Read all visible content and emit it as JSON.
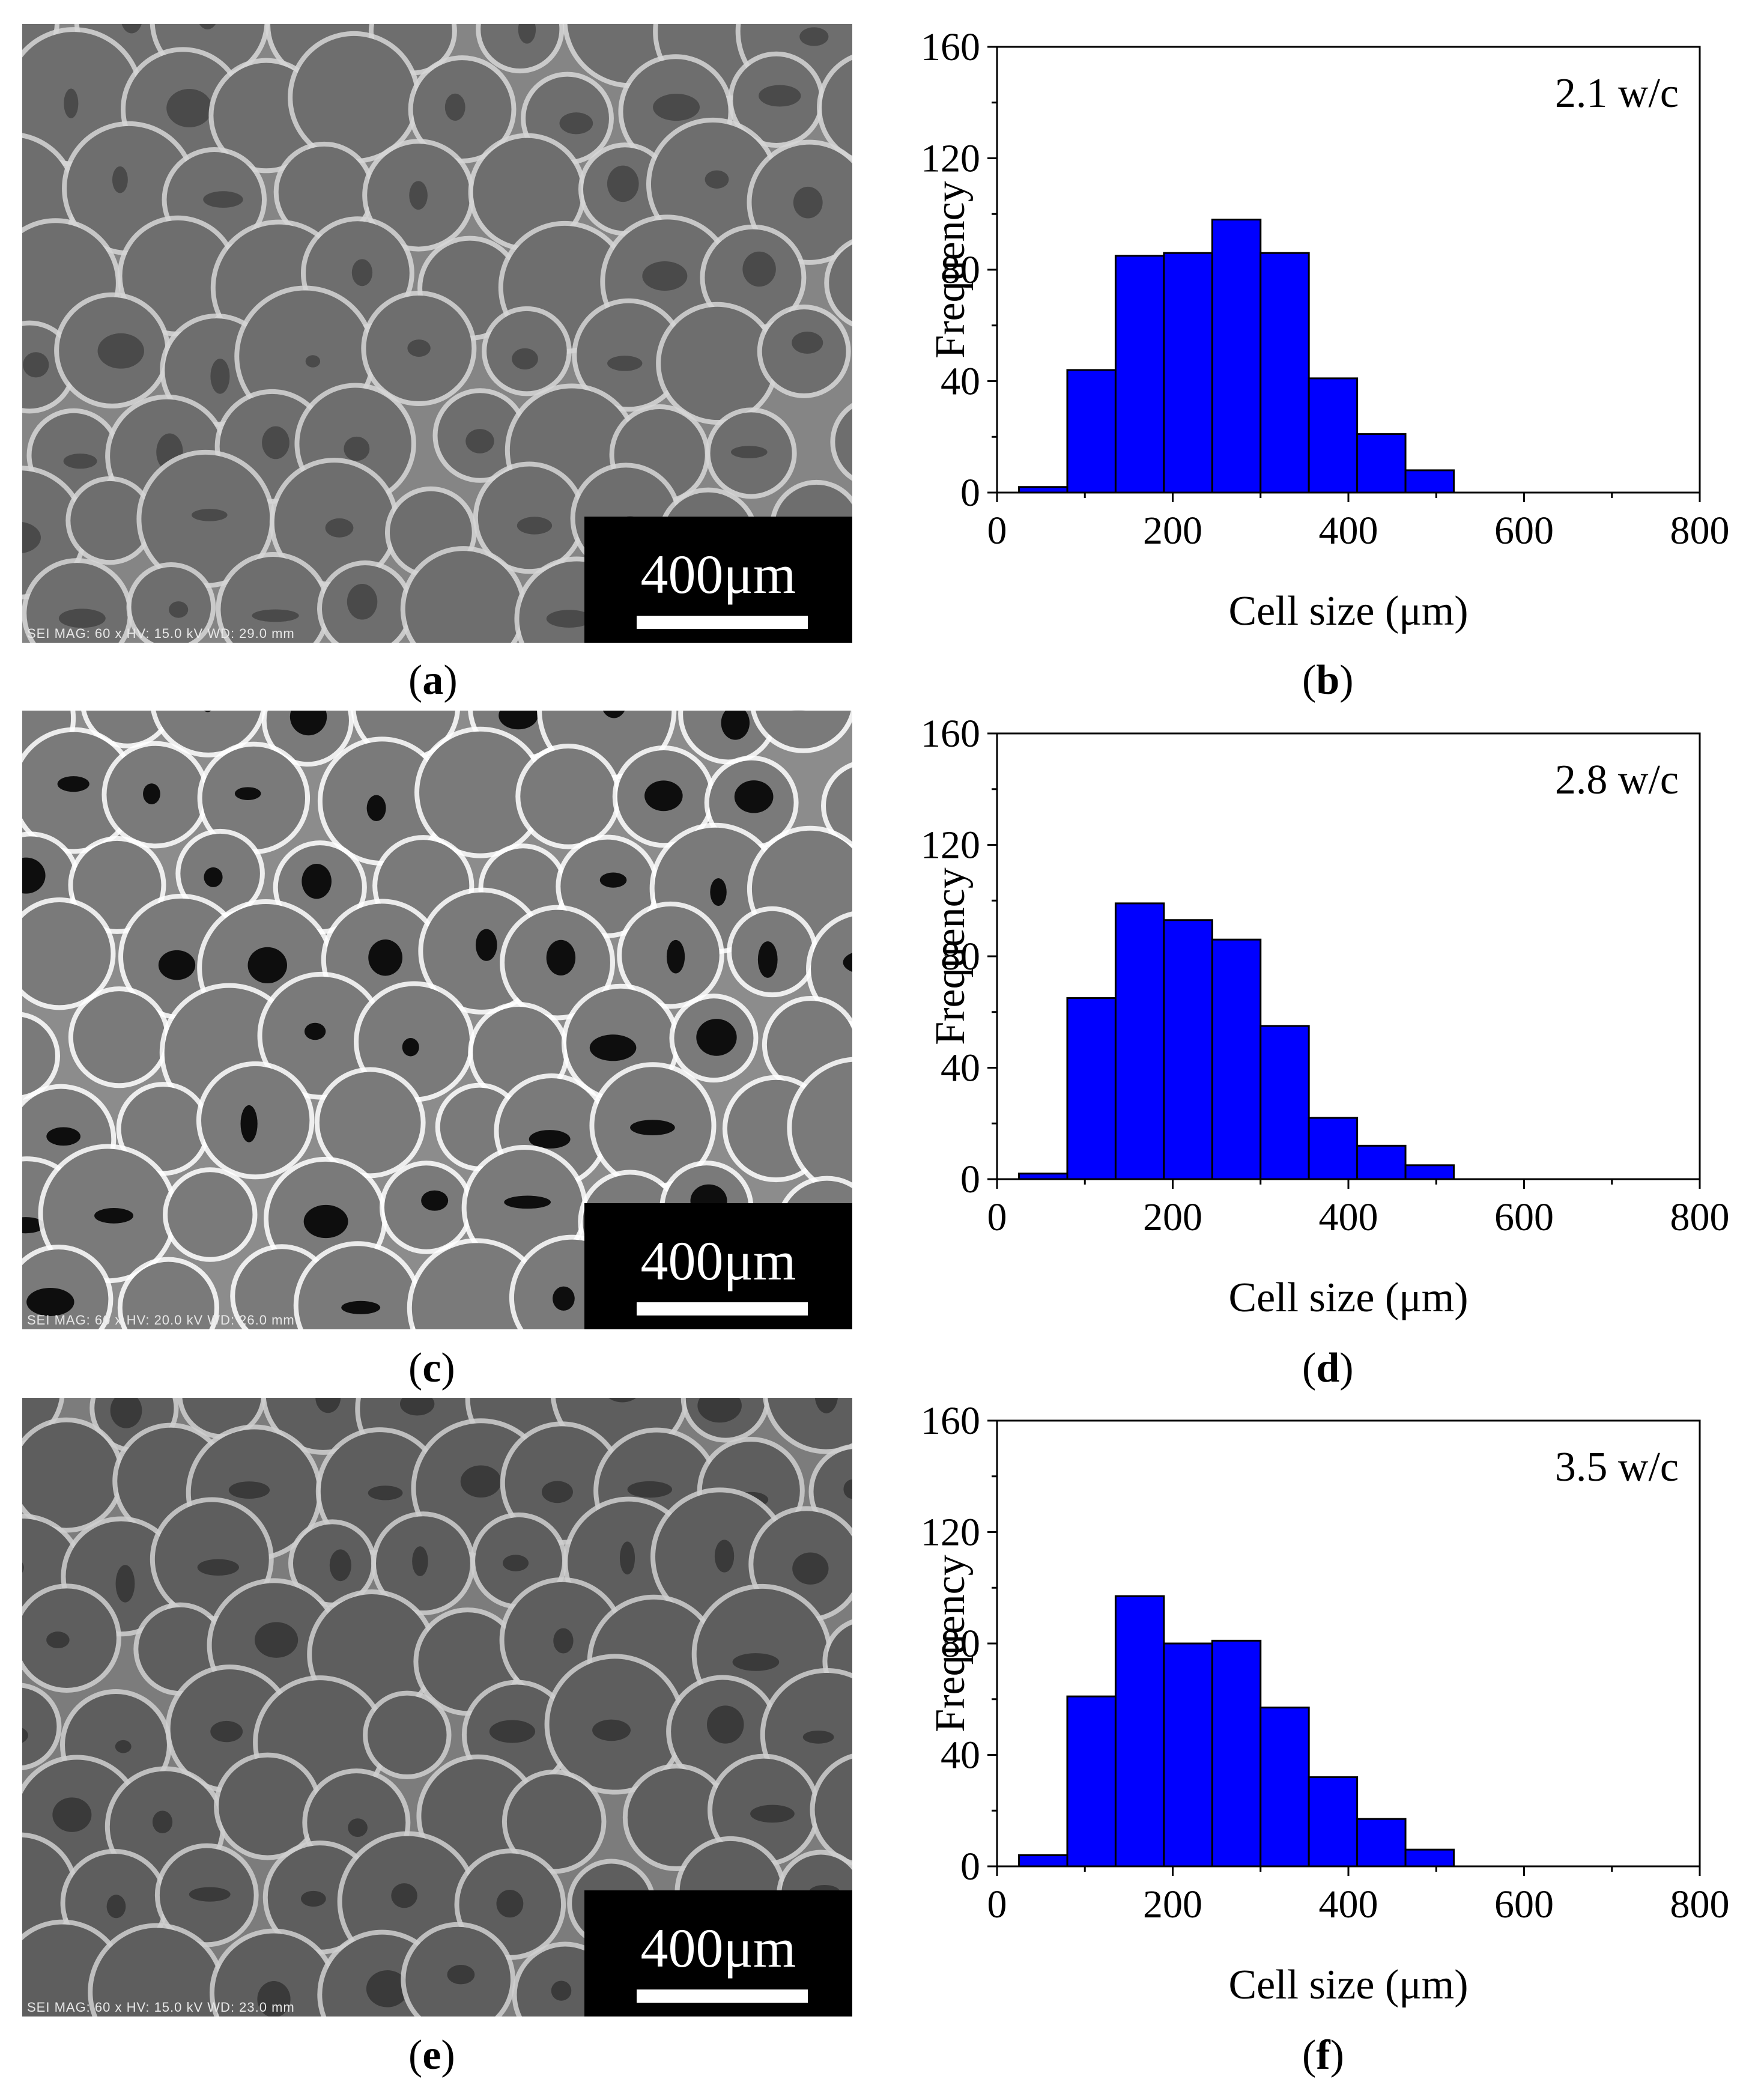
{
  "panels": [
    {
      "letter": "a",
      "scale_label": "400μm",
      "meta": "SEI  MAG: 60 x  HV: 15.0 kV  WD: 29.0 mm"
    },
    {
      "letter": "c",
      "scale_label": "400μm",
      "meta": "SEI  MAG: 60 x  HV: 20.0 kV  WD: 26.0 mm"
    },
    {
      "letter": "e",
      "scale_label": "400μm",
      "meta": "SEI  MAG: 60 x  HV: 15.0 kV  WD: 23.0 mm"
    }
  ],
  "chart_captions": [
    "b",
    "d",
    "f"
  ],
  "colors": {
    "bar_fill": "#0000ff",
    "bar_stroke": "#000000"
  },
  "chart_data": [
    {
      "type": "bar",
      "annotation": "2.1 w/c",
      "xlabel": "Cell size (μm)",
      "ylabel": "Frequency",
      "xlim": [
        0,
        800
      ],
      "ylim": [
        0,
        160
      ],
      "xticks": [
        0,
        200,
        400,
        600,
        800
      ],
      "yticks": [
        0,
        40,
        80,
        120,
        160
      ],
      "bin_edges": [
        25,
        80,
        135,
        190,
        245,
        300,
        355,
        410,
        465,
        520
      ],
      "values": [
        2,
        44,
        85,
        86,
        98,
        86,
        41,
        21,
        8
      ]
    },
    {
      "type": "bar",
      "annotation": "2.8 w/c",
      "xlabel": "Cell size (μm)",
      "ylabel": "Frequency",
      "xlim": [
        0,
        800
      ],
      "ylim": [
        0,
        160
      ],
      "xticks": [
        0,
        200,
        400,
        600,
        800
      ],
      "yticks": [
        0,
        40,
        80,
        120,
        160
      ],
      "bin_edges": [
        25,
        80,
        135,
        190,
        245,
        300,
        355,
        410,
        465,
        520
      ],
      "values": [
        2,
        65,
        99,
        93,
        86,
        55,
        22,
        12,
        5
      ]
    },
    {
      "type": "bar",
      "annotation": "3.5 w/c",
      "xlabel": "Cell size (μm)",
      "ylabel": "Frequency",
      "xlim": [
        0,
        800
      ],
      "ylim": [
        0,
        160
      ],
      "xticks": [
        0,
        200,
        400,
        600,
        800
      ],
      "yticks": [
        0,
        40,
        80,
        120,
        160
      ],
      "bin_edges": [
        25,
        80,
        135,
        190,
        245,
        300,
        355,
        410,
        465,
        520
      ],
      "values": [
        4,
        61,
        97,
        80,
        81,
        57,
        32,
        17,
        6
      ]
    }
  ]
}
